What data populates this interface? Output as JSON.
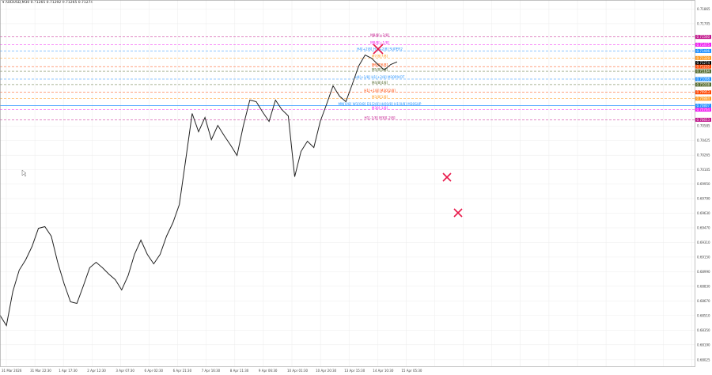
{
  "header": {
    "symbol": "AUDUSD,M30",
    "ohlc": "0.71265 0.71292 0.71265 0.71274",
    "menu_icon": "triangle-down-icon"
  },
  "price_axis": [
    "0.71865",
    "0.71705",
    "0.70585",
    "0.70425",
    "0.70265",
    "0.70105",
    "0.69950",
    "0.69790",
    "0.69630",
    "0.69470",
    "0.69310",
    "0.69150",
    "0.68990",
    "0.68830",
    "0.68670",
    "0.68510",
    "0.68350",
    "0.68190",
    "0.68025"
  ],
  "time_axis": [
    "31 Mar 2026",
    "31 Mar 22:30",
    "1 Apr 17:30",
    "2 Apr 12:30",
    "3 Apr 07:30",
    "6 Apr 02:30",
    "6 Apr 21:30",
    "7 Apr 16:30",
    "8 Apr 11:30",
    "9 Apr 06:30",
    "10 Apr 01:30",
    "10 Apr 20:30",
    "13 Apr 15:30",
    "14 Apr 10:30",
    "15 Apr 05:30"
  ],
  "levels": [
    {
      "label": "M8/8[+2/8]",
      "price": 0.7156,
      "tag": "0.71560",
      "color": "#c0138a",
      "style": "dash"
    },
    {
      "label": "M8/8[+1/8]",
      "price": 0.71475,
      "tag": "0.71475",
      "color": "#f01cf0",
      "style": "dash"
    },
    {
      "label": "H4[+2/8] H1[+2/8] SUPER2",
      "price": 0.71406,
      "tag": "0.71406",
      "color": "#1e8fff",
      "style": "dash"
    },
    {
      "label": "M7/8[7/8]",
      "price": 0.71329,
      "tag": "0.71329",
      "color": "#ff9a1e",
      "style": "dash"
    },
    {
      "label": "",
      "price": 0.71274,
      "tag": "0.71274",
      "color": "#000000",
      "style": "solid-tag"
    },
    {
      "label": "M6/8[6/8]",
      "price": 0.71235,
      "tag": "0.71235",
      "color": "#ff4500",
      "style": "dash"
    },
    {
      "label": "M5/8[5/8]",
      "price": 0.71184,
      "tag": "0.71184",
      "color": "#556b2f",
      "style": "dash"
    },
    {
      "label": "H4[+1/8] H1[+2/8] M30PIVOT",
      "price": 0.71098,
      "tag": "0.71098",
      "color": "#1e8fff",
      "style": "dash"
    },
    {
      "label": "M4/8[4/8]",
      "price": 0.71038,
      "tag": "0.71038",
      "color": "#556b2f",
      "style": "dash"
    },
    {
      "label": "H1[+1/8] M30[2/8]",
      "price": 0.70953,
      "tag": "0.70953",
      "color": "#ff4500",
      "style": "dash"
    },
    {
      "label": "M3/8[1/8]",
      "price": 0.70884,
      "tag": "0.70884",
      "color": "#ff9a1e",
      "style": "dash"
    },
    {
      "label": "MN[0/8] W1[0/8] D1[2/8] H4[0/8] H1[0/8] M30SUP",
      "price": 0.70807,
      "tag": "0.70807",
      "color": "#1e8fff",
      "style": "solid"
    },
    {
      "label": "M30[-1/8]",
      "price": 0.70764,
      "tag": "0.70764",
      "color": "#f01cf0",
      "style": "dash"
    },
    {
      "label": "H1[-1/8] M30[-2/8]",
      "price": 0.70653,
      "tag": "0.70653",
      "color": "#c0138a",
      "style": "dash"
    }
  ],
  "price_series": [
    0.685,
    0.68413,
    0.6876,
    0.6902,
    0.69106,
    0.69279,
    0.69452,
    0.69496,
    0.69366,
    0.69106,
    0.68846,
    0.68673,
    0.6863,
    0.68846,
    0.6902,
    0.69106,
    0.6902,
    0.68976,
    0.6889,
    0.68803,
    0.68933,
    0.69193,
    0.69323,
    0.69193,
    0.69063,
    0.69193,
    0.69366,
    0.69539,
    0.69712,
    0.70232,
    0.70708,
    0.70535,
    0.70665,
    0.70448,
    0.70578,
    0.70492,
    0.70362,
    0.70275,
    0.70578,
    0.70881,
    0.70838,
    0.70751,
    0.70622,
    0.70881,
    0.70751,
    0.70708,
    0.70016,
    0.70319,
    0.70405,
    0.70362,
    0.70622,
    0.70838,
    0.71011,
    0.70925,
    0.70838,
    0.71055,
    0.71228,
    0.71375,
    0.71314,
    0.71271,
    0.71185,
    0.71271,
    0.71274
  ],
  "colors": {
    "grid": "#ececec",
    "price": "#222222",
    "cross": "#e8194a"
  }
}
